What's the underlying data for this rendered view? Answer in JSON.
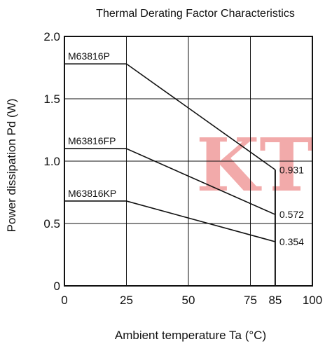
{
  "chart_data": {
    "type": "line",
    "title": "Thermal Derating Factor Characteristics",
    "xlabel": "Ambient temperature  Ta (°C)",
    "ylabel": "Power dissipation  Pd (W)",
    "xlim": [
      0,
      100
    ],
    "ylim": [
      0,
      2.0
    ],
    "xticks": [
      0,
      25,
      50,
      75,
      85,
      100
    ],
    "xtick_labels": [
      "0",
      "25",
      "50",
      "75",
      "85",
      "100"
    ],
    "yticks": [
      0,
      0.5,
      1.0,
      1.5,
      2.0
    ],
    "ytick_labels": [
      "0",
      "0.5",
      "1.0",
      "1.5",
      "2.0"
    ],
    "grid": true,
    "series": [
      {
        "name": "M63816P",
        "x": [
          0,
          25,
          85
        ],
        "y": [
          1.78,
          1.78,
          0.931
        ],
        "end_label": "0.931"
      },
      {
        "name": "M63816FP",
        "x": [
          0,
          25,
          85
        ],
        "y": [
          1.1,
          1.1,
          0.572
        ],
        "end_label": "0.572"
      },
      {
        "name": "M63816KP",
        "x": [
          0,
          25,
          85
        ],
        "y": [
          0.68,
          0.68,
          0.354
        ],
        "end_label": "0.354"
      }
    ],
    "cutoff_x": 85,
    "watermark": "KT"
  }
}
